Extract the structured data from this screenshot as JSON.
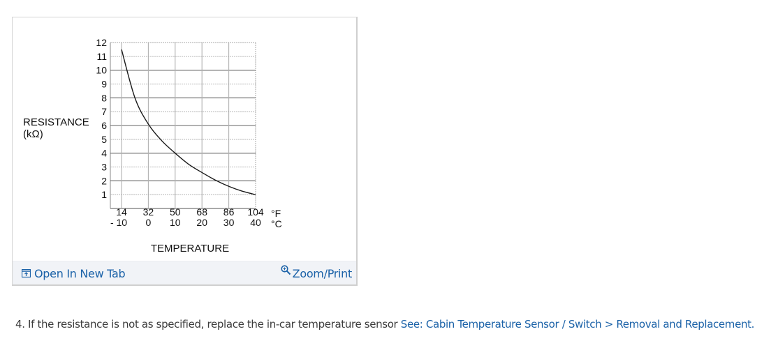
{
  "figure": {
    "open_in_new_tab_label": "Open In New Tab",
    "zoom_print_label": "Zoom/Print",
    "link_color": "#1b62a8",
    "footer_bg": "#f1f3f7"
  },
  "step": {
    "number": "4.",
    "text": "If the resistance is not as specified, replace the in-car temperature sensor",
    "link_label": "See: Cabin Temperature Sensor / Switch > Removal and Replacement."
  },
  "chart_data": {
    "type": "line",
    "title": "",
    "ylabel": "RESISTANCE",
    "ylabel_unit": "(kΩ)",
    "xlabel": "TEMPERATURE",
    "x_unit_f": "°F",
    "x_unit_c": "°C",
    "x_ticks_f": [
      "14",
      "32",
      "50",
      "68",
      "86",
      "104"
    ],
    "x_ticks_c": [
      "- 10",
      "0",
      "10",
      "20",
      "30",
      "40"
    ],
    "y_ticks": [
      "1",
      "2",
      "3",
      "4",
      "5",
      "6",
      "7",
      "8",
      "9",
      "10",
      "11",
      "12"
    ],
    "ylim": [
      0,
      12
    ],
    "xlim_c": [
      -10,
      40
    ],
    "grid": true,
    "major_gridlines_y": [
      2,
      4,
      6,
      8,
      10
    ],
    "series": [
      {
        "name": "Resistance",
        "x_c": [
          -10,
          -5,
          0,
          5,
          10,
          15,
          20,
          25,
          30,
          35,
          40
        ],
        "x_f": [
          14,
          23,
          32,
          41,
          50,
          59,
          68,
          77,
          86,
          95,
          104
        ],
        "values": [
          11.5,
          8.0,
          6.1,
          4.9,
          4.0,
          3.2,
          2.6,
          2.05,
          1.6,
          1.25,
          1.0
        ]
      }
    ]
  }
}
